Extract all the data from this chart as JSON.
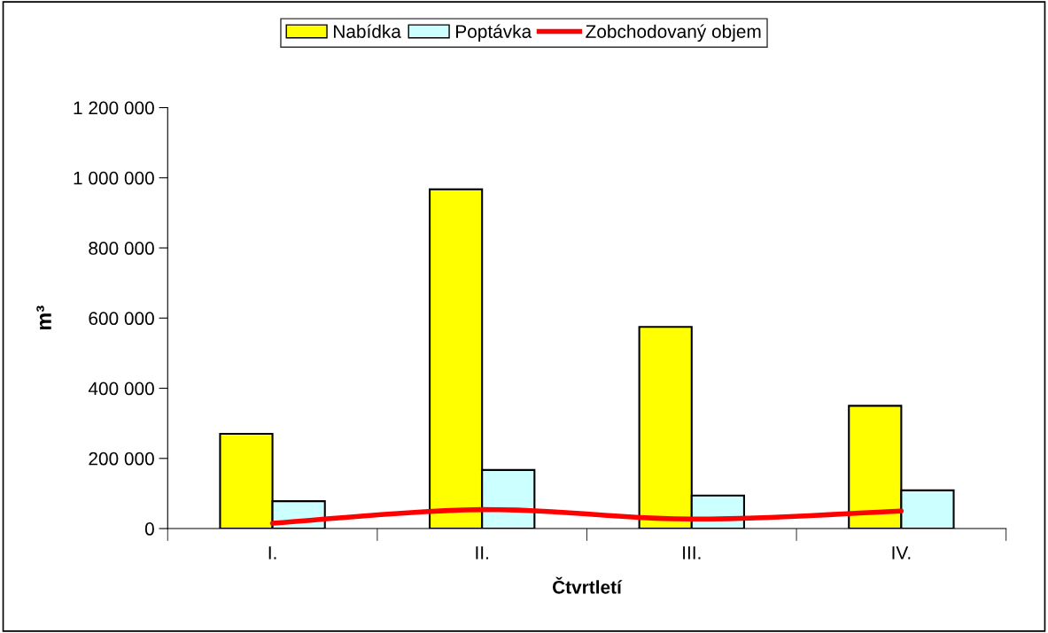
{
  "chart_data": {
    "type": "bar",
    "xlabel": "Čtvrtletí",
    "ylabel": "m³",
    "categories": [
      "I.",
      "II.",
      "III.",
      "IV."
    ],
    "series": [
      {
        "name": "Nabídka",
        "color": "#ffff00",
        "values": [
          270000,
          967000,
          575000,
          350000
        ]
      },
      {
        "name": "Poptávka",
        "color": "#ccffff",
        "values": [
          78000,
          167000,
          94000,
          109000
        ]
      },
      {
        "name": "Zobchodovaný objem",
        "type": "line",
        "color": "#ff0000",
        "values": [
          15000,
          54000,
          27000,
          50000
        ]
      }
    ],
    "ylim": [
      0,
      1200000
    ],
    "yticks": [
      {
        "value": 0,
        "label": "0"
      },
      {
        "value": 200000,
        "label": "200 000"
      },
      {
        "value": 400000,
        "label": "400 000"
      },
      {
        "value": 600000,
        "label": "600 000"
      },
      {
        "value": 800000,
        "label": "800 000"
      },
      {
        "value": 1000000,
        "label": "1 000 000"
      },
      {
        "value": 1200000,
        "label": "1 200 000"
      }
    ],
    "legend": "top",
    "grid": false
  }
}
